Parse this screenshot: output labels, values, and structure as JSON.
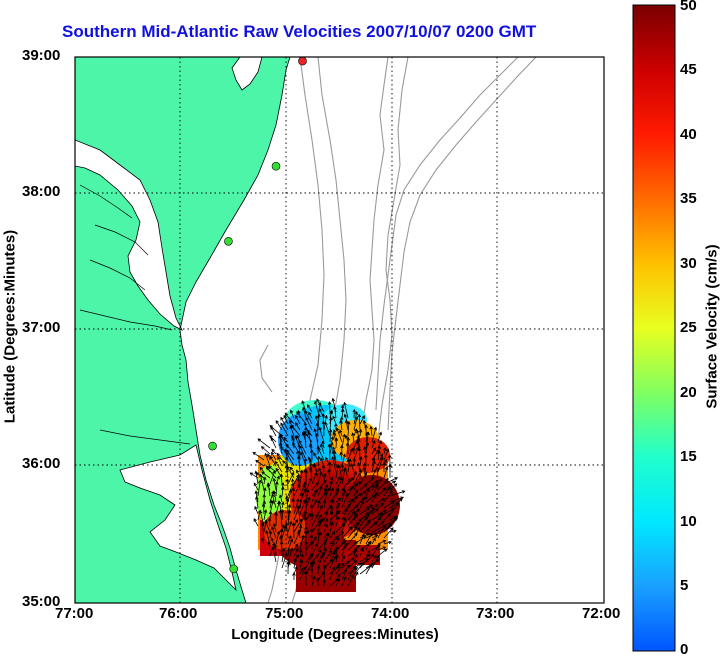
{
  "title": "Southern Mid-Atlantic Raw Velocities 2007/10/07 0200 GMT",
  "x_axis": {
    "label": "Longitude (Degrees:Minutes)",
    "ticks": [
      "77:00",
      "76:00",
      "75:00",
      "74:00",
      "73:00",
      "72:00"
    ]
  },
  "y_axis": {
    "label": "Latitude (Degrees:Minutes)",
    "ticks": [
      "39:00",
      "38:00",
      "37:00",
      "36:00",
      "35:00"
    ]
  },
  "colorbar": {
    "label": "Surface Velocity (cm/s)",
    "ticks": [
      "50",
      "45",
      "40",
      "35",
      "30",
      "25",
      "20",
      "15",
      "10",
      "5",
      "0"
    ],
    "min": 0,
    "max": 50
  },
  "colors": {
    "land": "#4cf5a8",
    "water": "#ffffff",
    "coast": "#000000",
    "bathymetry": "#9a9a9a",
    "title": "#1010e0",
    "station_green": "#33dd33",
    "station_red": "#ee2222"
  },
  "map": {
    "lon_range": [
      -77,
      -72
    ],
    "lat_range": [
      35,
      39
    ],
    "grid": true,
    "stations": [
      {
        "lon": -74.85,
        "lat": 38.97,
        "color": "red"
      },
      {
        "lon": -75.1,
        "lat": 38.2,
        "color": "green"
      },
      {
        "lon": -75.55,
        "lat": 37.65,
        "color": "green"
      },
      {
        "lon": -75.7,
        "lat": 36.15,
        "color": "green"
      },
      {
        "lon": -75.5,
        "lat": 35.25,
        "color": "green"
      }
    ]
  }
}
